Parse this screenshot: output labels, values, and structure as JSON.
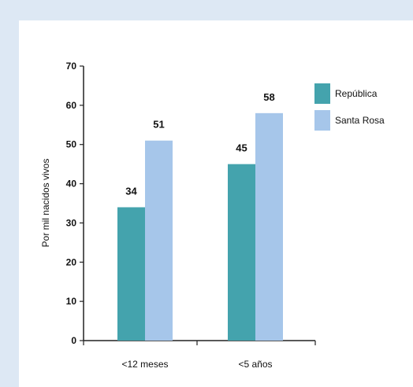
{
  "chart_data": {
    "type": "bar",
    "title": "",
    "xlabel": "",
    "ylabel": "Por mil nacidos vivos",
    "ylim": [
      0,
      70
    ],
    "yticks": [
      0,
      10,
      20,
      30,
      40,
      50,
      60,
      70
    ],
    "categories": [
      "<12 meses",
      "<5 años"
    ],
    "series": [
      {
        "name": "República",
        "values": [
          34,
          45
        ],
        "color": "#44a3ad"
      },
      {
        "name": "Santa Rosa",
        "values": [
          51,
          58
        ],
        "color": "#a6c6ea"
      }
    ],
    "grid": false,
    "legend_position": "top-right"
  }
}
